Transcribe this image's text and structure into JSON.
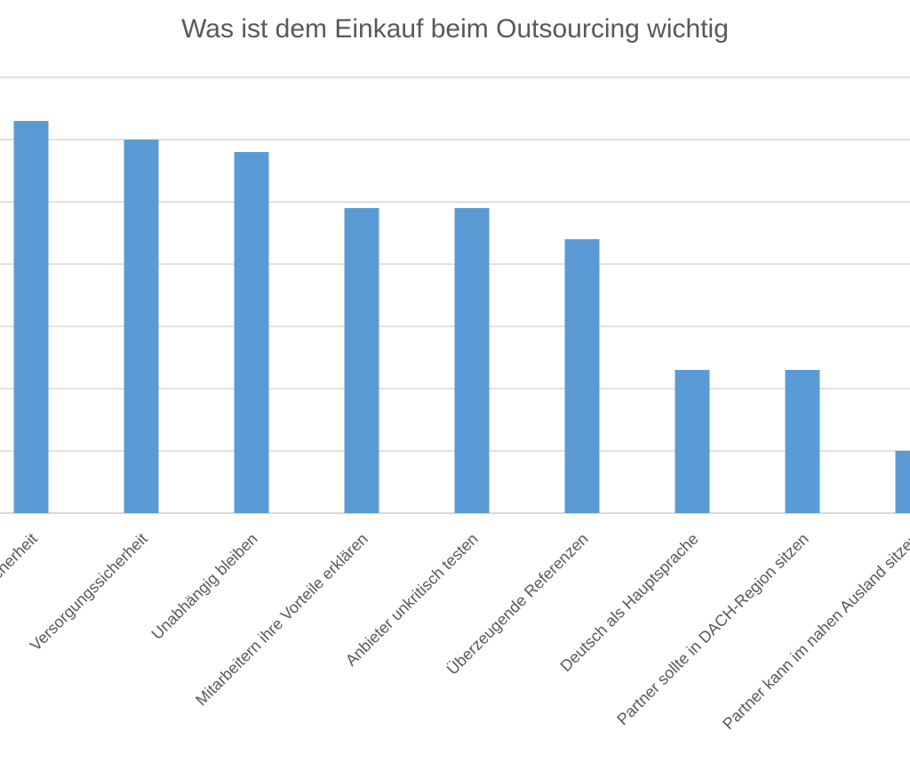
{
  "chart_data": {
    "type": "bar",
    "title": "Was ist dem Einkauf beim Outsourcing wichtig",
    "categories": [
      "Planungssicherheit",
      "Versorgungssicherheit",
      "Unabhängig bleiben",
      "Mitarbeitern ihre Vorteile erklären",
      "Anbieter unkritisch testen",
      "Überzeugende Referenzen",
      "Deutsch als Hauptsprache",
      "Partner sollte in DACH-Region sitzen",
      "Partner kann im nahen Ausland sitzen"
    ],
    "values": [
      6.3,
      6.0,
      5.8,
      4.9,
      4.9,
      4.4,
      2.3,
      2.3,
      1.0
    ],
    "ylim": [
      0,
      7
    ],
    "grid": true,
    "legend": "none",
    "bar_color": "#5B9BD5",
    "grid_color": "#D9D9D9",
    "text_color": "#595959"
  }
}
